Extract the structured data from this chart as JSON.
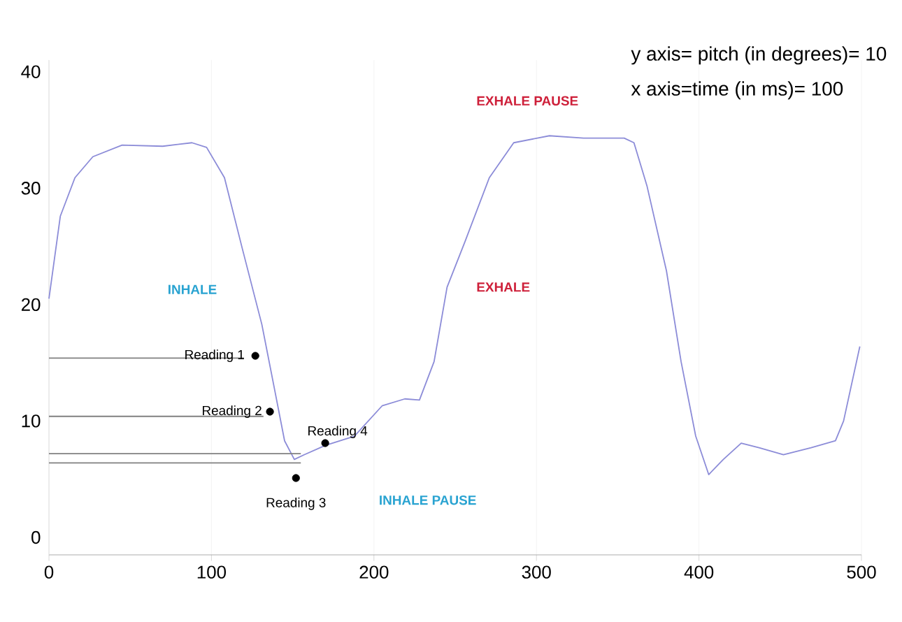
{
  "chart_data": {
    "type": "line",
    "xlim": [
      0,
      500
    ],
    "ylim": [
      -1.5,
      41
    ],
    "xticks": [
      0,
      100,
      200,
      300,
      400,
      500
    ],
    "yticks": [
      0,
      10,
      20,
      30,
      40
    ],
    "grid": "x",
    "line_style": "solid",
    "series": [
      {
        "color": "#8c8cd8",
        "x": [
          0,
          7,
          16,
          27,
          45,
          70,
          88,
          97,
          108,
          119,
          131,
          139,
          145,
          151,
          157,
          170,
          188,
          205,
          219,
          228,
          237,
          245,
          256,
          271,
          286,
          308,
          329,
          354,
          360,
          368,
          380,
          389,
          398,
          406,
          415,
          426,
          437,
          452,
          469,
          484,
          489,
          499
        ],
        "values": [
          20.5,
          27.6,
          30.9,
          32.7,
          33.7,
          33.6,
          33.9,
          33.5,
          30.9,
          24.8,
          18.3,
          12.6,
          8.3,
          6.7,
          7.1,
          7.9,
          8.7,
          11.3,
          11.9,
          11.8,
          15.1,
          21.5,
          25.4,
          30.9,
          33.9,
          34.5,
          34.3,
          34.3,
          33.9,
          30.2,
          22.9,
          15.1,
          8.7,
          5.4,
          6.7,
          8.1,
          7.7,
          7.1,
          7.7,
          8.3,
          10,
          16.4
        ]
      },
      {
        "color": "#808080",
        "x": [
          0,
          120
        ],
        "values": [
          15.4,
          15.4
        ]
      },
      {
        "color": "#808080",
        "x": [
          0,
          132
        ],
        "values": [
          10.4,
          10.4
        ]
      },
      {
        "color": "#808080",
        "x": [
          0,
          155
        ],
        "values": [
          7.2,
          7.2
        ]
      },
      {
        "color": "#808080",
        "x": [
          0,
          155
        ],
        "values": [
          6.4,
          6.4
        ]
      },
      {
        "type": "scatter",
        "color": "#000000",
        "x": [
          127,
          136,
          152,
          170
        ],
        "values": [
          15.6,
          10.8,
          5.1,
          8.1
        ]
      }
    ],
    "annotations": [
      {
        "text": "Reading 1",
        "x": 127,
        "y": 15.6
      },
      {
        "text": "Reading 2",
        "x": 136,
        "y": 10.8
      },
      {
        "text": "Reading 3",
        "x": 152,
        "y": 5.1
      },
      {
        "text": "Reading 4",
        "x": 170,
        "y": 8.1
      },
      "INHALE",
      "INHALE PAUSE",
      "EXHALE",
      "EXHALE PAUSE",
      "y axis= pitch (in degrees)= 10",
      "x axis=time (in ms)= 100"
    ]
  }
}
